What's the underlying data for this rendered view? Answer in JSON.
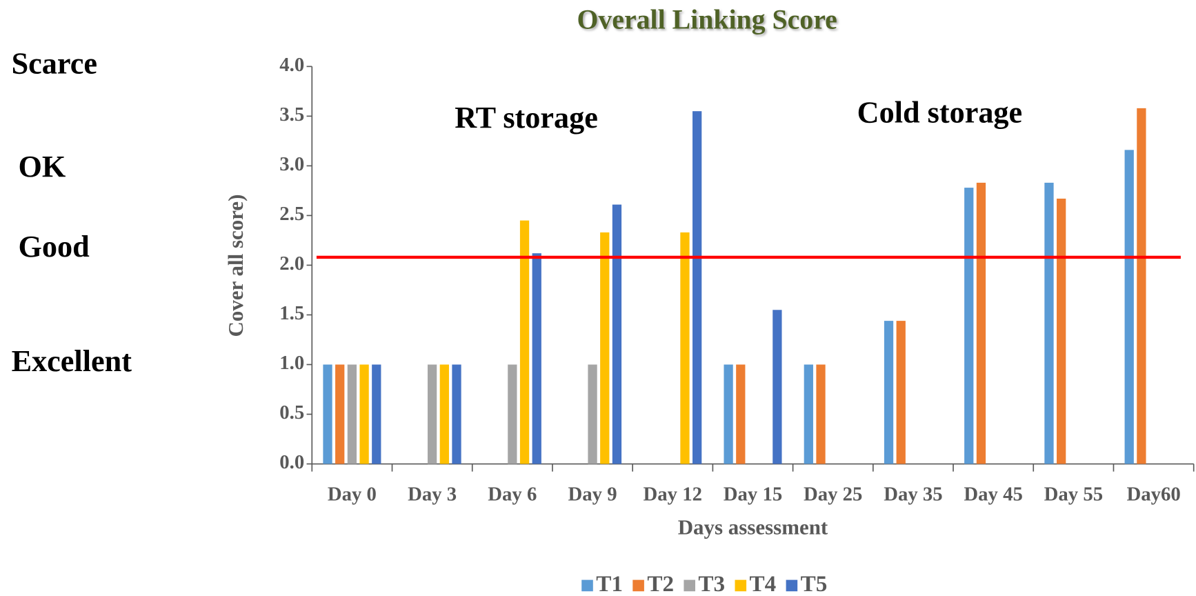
{
  "chart_data": {
    "type": "bar",
    "title": "Overall Linking Score",
    "xlabel": "Days assessment",
    "ylabel": "Cover all score)",
    "categories": [
      "Day 0",
      "Day 3",
      "Day 6",
      "Day 9",
      "Day 12",
      "Day 15",
      "Day 25",
      "Day 35",
      "Day 45",
      "Day 55",
      "Day60"
    ],
    "series": [
      {
        "name": "T1",
        "color": "#5b9bd5",
        "values": [
          1,
          null,
          null,
          null,
          null,
          1,
          1,
          1.44,
          2.78,
          2.83,
          3.16
        ]
      },
      {
        "name": "T2",
        "color": "#ed7d31",
        "values": [
          1,
          null,
          null,
          null,
          null,
          1,
          1,
          1.44,
          2.83,
          2.67,
          3.58
        ]
      },
      {
        "name": "T3",
        "color": "#a5a5a5",
        "values": [
          1,
          1,
          1,
          1,
          null,
          null,
          null,
          null,
          null,
          null,
          null
        ]
      },
      {
        "name": "T4",
        "color": "#ffc000",
        "values": [
          1,
          1,
          2.45,
          2.33,
          2.33,
          null,
          null,
          null,
          null,
          null,
          null
        ]
      },
      {
        "name": "T5",
        "color": "#4472c4",
        "values": [
          1,
          1,
          2.12,
          2.61,
          3.55,
          1.55,
          null,
          null,
          null,
          null,
          null
        ]
      }
    ],
    "ylim": [
      0,
      4
    ],
    "yticks": [
      {
        "value": 0,
        "label": "0.0"
      },
      0.5,
      {
        "value": 1,
        "label": "1.0"
      },
      1.5,
      {
        "value": 2,
        "label": "2.0"
      },
      2.5,
      {
        "value": 3,
        "label": "3.0"
      },
      3.5,
      {
        "value": 4,
        "label": "4.0"
      }
    ],
    "reference_line": {
      "value": 2.08,
      "color": "#ff0000"
    },
    "annotations": [
      "RT storage",
      "Cold storage"
    ],
    "side_labels": [
      "Scarce",
      "OK",
      "Good",
      "Excellent"
    ],
    "legend": "bottom",
    "grid": false
  }
}
